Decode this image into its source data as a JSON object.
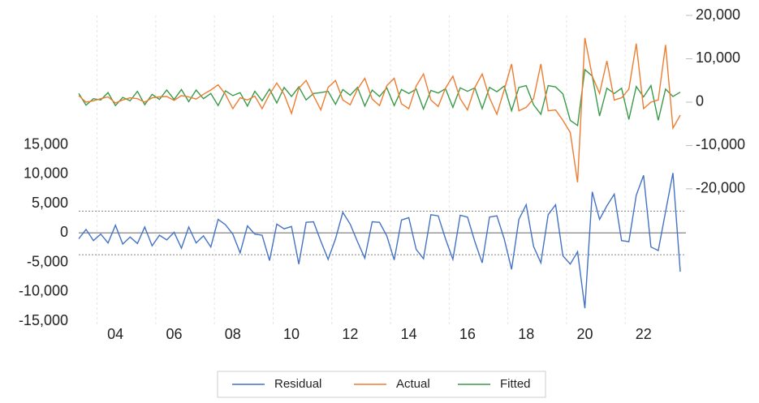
{
  "chart_data": {
    "type": "line",
    "categories": [
      null,
      null,
      null,
      null,
      null,
      "04",
      null,
      null,
      null,
      null,
      null,
      null,
      null,
      "06",
      null,
      null,
      null,
      null,
      null,
      null,
      null,
      "08",
      null,
      null,
      null,
      null,
      null,
      null,
      null,
      "10",
      null,
      null,
      null,
      null,
      null,
      null,
      null,
      "12",
      null,
      null,
      null,
      null,
      null,
      null,
      null,
      "14",
      null,
      null,
      null,
      null,
      null,
      null,
      null,
      "16",
      null,
      null,
      null,
      null,
      null,
      null,
      null,
      "18",
      null,
      null,
      null,
      null,
      null,
      null,
      null,
      "20",
      null,
      null,
      null,
      null,
      null,
      null,
      null,
      "22",
      null,
      null,
      null,
      null,
      null
    ],
    "series": [
      {
        "name": "Residual",
        "color": "#4472c4",
        "axis": "y",
        "values": [
          -1000,
          600,
          -1300,
          -200,
          -1700,
          1300,
          -1900,
          -700,
          -1800,
          1000,
          -2200,
          -400,
          -1200,
          100,
          -2600,
          1000,
          -1700,
          -500,
          -2400,
          2300,
          1400,
          -200,
          -3400,
          1200,
          -200,
          -400,
          -4700,
          1500,
          700,
          1100,
          -5300,
          1800,
          1900,
          -1400,
          -4500,
          -1000,
          3500,
          1500,
          -1500,
          -4300,
          1900,
          1800,
          -500,
          -4600,
          2200,
          2600,
          -2800,
          -4400,
          3100,
          2900,
          -1000,
          -4500,
          3000,
          2700,
          -1500,
          -5100,
          2700,
          2900,
          -1000,
          -6200,
          2300,
          4800,
          -2300,
          -5100,
          3100,
          4800,
          -3900,
          -5300,
          -3200,
          -12800,
          7000,
          2300,
          4600,
          6600,
          -1300,
          -1500,
          6400,
          9800,
          -2400,
          -3000,
          3600,
          10200,
          -6600
        ]
      },
      {
        "name": "Actual",
        "color": "#ed7d31",
        "axis": "y2",
        "values": [
          1500,
          0,
          300,
          800,
          1200,
          -200,
          500,
          1000,
          800,
          0,
          1000,
          1200,
          1300,
          400,
          1500,
          1200,
          700,
          1800,
          2800,
          4000,
          1800,
          -1500,
          1000,
          500,
          1400,
          -1500,
          1800,
          4400,
          1800,
          -2600,
          3200,
          5000,
          1500,
          -1800,
          3400,
          5000,
          500,
          -600,
          3000,
          5500,
          700,
          -800,
          3800,
          5500,
          -400,
          -1500,
          3700,
          6500,
          500,
          -1000,
          3200,
          6000,
          800,
          -1800,
          3400,
          6500,
          1000,
          -2800,
          2800,
          8800,
          -2000,
          -1200,
          800,
          8800,
          -2000,
          -1800,
          -4200,
          -7000,
          -18500,
          14800,
          6000,
          2000,
          9500,
          500,
          1000,
          3000,
          13500,
          -1500,
          0,
          500,
          13200,
          -6000,
          -3000
        ]
      },
      {
        "name": "Fitted",
        "color": "#3a9a4a",
        "axis": "y2",
        "values": [
          2000,
          -700,
          800,
          500,
          2200,
          -800,
          1100,
          300,
          2500,
          -600,
          1800,
          600,
          2800,
          600,
          2900,
          100,
          2800,
          800,
          2000,
          -800,
          2600,
          1500,
          2200,
          -900,
          2500,
          300,
          3000,
          -200,
          3400,
          1300,
          3500,
          500,
          2000,
          2200,
          2500,
          -500,
          2900,
          1600,
          3400,
          -900,
          2800,
          1300,
          3300,
          -800,
          2900,
          2000,
          3000,
          -1600,
          2700,
          2100,
          3100,
          -1200,
          3300,
          2500,
          3300,
          -1500,
          3400,
          2400,
          3700,
          -2000,
          3400,
          3800,
          -600,
          -2800,
          3800,
          3500,
          1900,
          -4200,
          -5400,
          7500,
          6000,
          -3200,
          3200,
          2000,
          3200,
          -4000,
          3600,
          1200,
          3800,
          -4200,
          3000,
          1300,
          2300
        ]
      }
    ],
    "ylim": [
      -15000,
      37000
    ],
    "yticks": [
      {
        "value": 15000,
        "label": "15,000"
      },
      {
        "value": 10000,
        "label": "10,000"
      },
      {
        "value": 5000,
        "label": "5,000"
      },
      0,
      {
        "value": -5000,
        "label": "-5,000"
      },
      {
        "value": -10000,
        "label": "-10,000"
      },
      {
        "value": -15000,
        "label": "-15,000"
      }
    ],
    "y2lim": [
      -50500,
      20000
    ],
    "y2ticks": [
      {
        "value": 20000,
        "label": "20,000"
      },
      {
        "value": 10000,
        "label": "10,000"
      },
      0,
      {
        "value": -10000,
        "label": "-10,000"
      },
      {
        "value": -20000,
        "label": "-20,000"
      }
    ],
    "std_error": 3700,
    "grid": true,
    "legend": "bottom"
  }
}
